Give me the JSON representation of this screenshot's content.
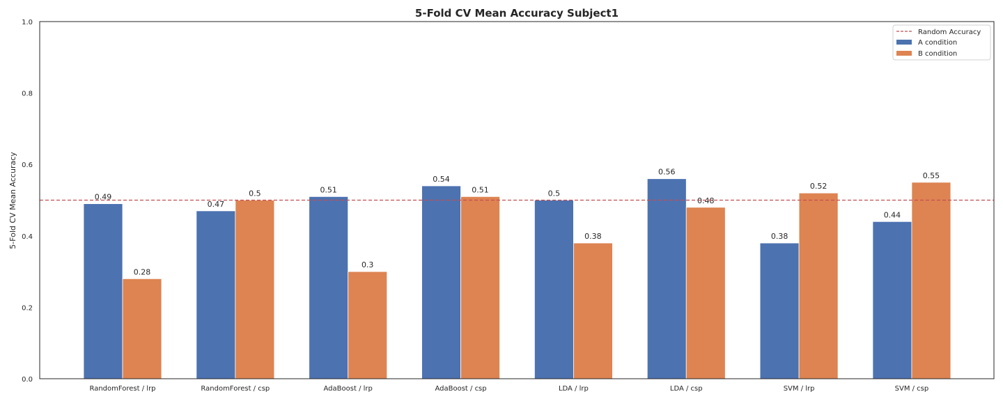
{
  "chart_data": {
    "type": "bar",
    "title": "5-Fold CV Mean Accuracy Subject1",
    "xlabel": "",
    "ylabel": "5-Fold CV Mean Accuracy",
    "ylim": [
      0,
      1.0
    ],
    "yticks": [
      "0.0",
      "0.2",
      "0.4",
      "0.6",
      "0.8",
      "1.0"
    ],
    "categories": [
      "RandomForest / lrp",
      "RandomForest / csp",
      "AdaBoost / lrp",
      "AdaBoost / csp",
      "LDA / lrp",
      "LDA / csp",
      "SVM / lrp",
      "SVM / csp"
    ],
    "series": [
      {
        "name": "A condition",
        "color": "#4c72b0",
        "values": [
          0.49,
          0.47,
          0.51,
          0.54,
          0.5,
          0.56,
          0.38,
          0.44
        ]
      },
      {
        "name": "B condition",
        "color": "#dd8452",
        "values": [
          0.28,
          0.5,
          0.3,
          0.51,
          0.38,
          0.48,
          0.52,
          0.55
        ]
      }
    ],
    "reference_line": {
      "name": "Random Accuracy",
      "value": 0.5,
      "color": "#c44e52",
      "style": "dashed"
    },
    "legend_placement": "top-right",
    "grid": false
  }
}
